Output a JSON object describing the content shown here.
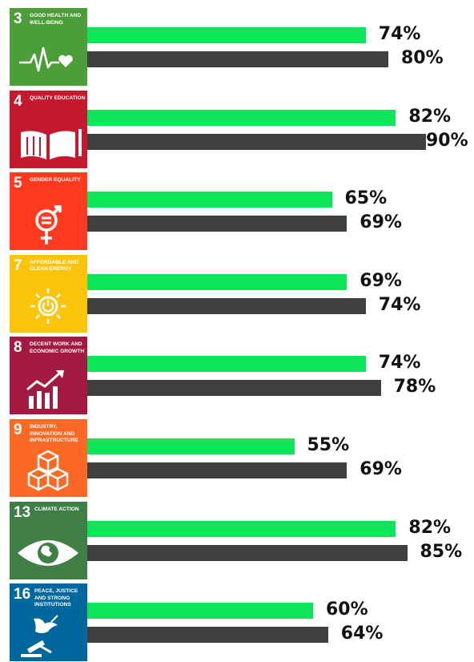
{
  "colors": {
    "green_series": "#0ee65a",
    "dark_series": "#3f3f3f"
  },
  "chart_data": {
    "type": "bar",
    "orientation": "horizontal",
    "categories": [
      {
        "num": "3",
        "label": "GOOD HEALTH AND WELL-BEING",
        "color": "#4c9f38",
        "icon": "heartbeat-icon"
      },
      {
        "num": "4",
        "label": "QUALITY EDUCATION",
        "color": "#c5192d",
        "icon": "book-icon"
      },
      {
        "num": "5",
        "label": "GENDER EQUALITY",
        "color": "#ff3a21",
        "icon": "gender-equality-icon"
      },
      {
        "num": "7",
        "label": "AFFORDABLE AND CLEAN ENERGY",
        "color": "#fcc30b",
        "icon": "sun-power-icon"
      },
      {
        "num": "8",
        "label": "DECENT WORK AND ECONOMIC GROWTH",
        "color": "#a21942",
        "icon": "growth-chart-icon"
      },
      {
        "num": "9",
        "label": "INDUSTRY, INNOVATION AND INFRASTRUCTURE",
        "color": "#fd6925",
        "icon": "cubes-icon"
      },
      {
        "num": "13",
        "label": "CLIMATE ACTION",
        "color": "#3f7e44",
        "icon": "eye-globe-icon"
      },
      {
        "num": "16",
        "label": "PEACE, JUSTICE AND STRONG INSTITUTIONS",
        "color": "#00689d",
        "icon": "dove-gavel-icon"
      }
    ],
    "series": [
      {
        "color": "#0ee65a",
        "values": [
          74,
          82,
          65,
          69,
          74,
          55,
          82,
          60
        ]
      },
      {
        "color": "#3f3f3f",
        "values": [
          80,
          90,
          69,
          74,
          78,
          69,
          85,
          64
        ]
      }
    ],
    "value_labels": [
      [
        "74%",
        "82%",
        "65%",
        "69%",
        "74%",
        "55%",
        "82%",
        "60%"
      ],
      [
        "80%",
        "90%",
        "69%",
        "74%",
        "78%",
        "69%",
        "85%",
        "64%"
      ]
    ],
    "xlim": [
      0,
      100
    ],
    "grid": false,
    "legend": false
  }
}
